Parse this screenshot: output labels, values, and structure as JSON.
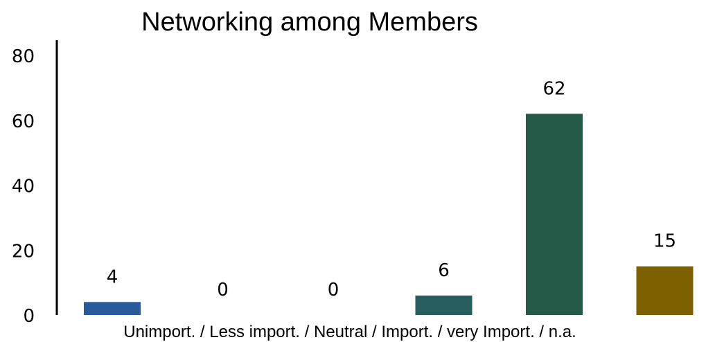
{
  "chart_data": {
    "type": "bar",
    "title": "Networking among Members",
    "xlabel": "Unimport. / Less import. / Neutral / Import. / very Import. / n.a.",
    "ylabel": "",
    "ylim": [
      0,
      80
    ],
    "yticks": [
      0,
      20,
      40,
      60,
      80
    ],
    "grid": false,
    "legend": "none",
    "categories": [
      "Unimport.",
      "Less import.",
      "Neutral",
      "Import.",
      "very Import.",
      "n.a."
    ],
    "values": [
      4,
      0,
      0,
      6,
      62,
      15
    ],
    "data_labels": [
      "4",
      "0",
      "0",
      "6",
      "62",
      "15"
    ],
    "colors": [
      "#2a5a99",
      "#2a5a99",
      "#2a5a99",
      "#285e5e",
      "#265a48",
      "#7d6000"
    ]
  }
}
